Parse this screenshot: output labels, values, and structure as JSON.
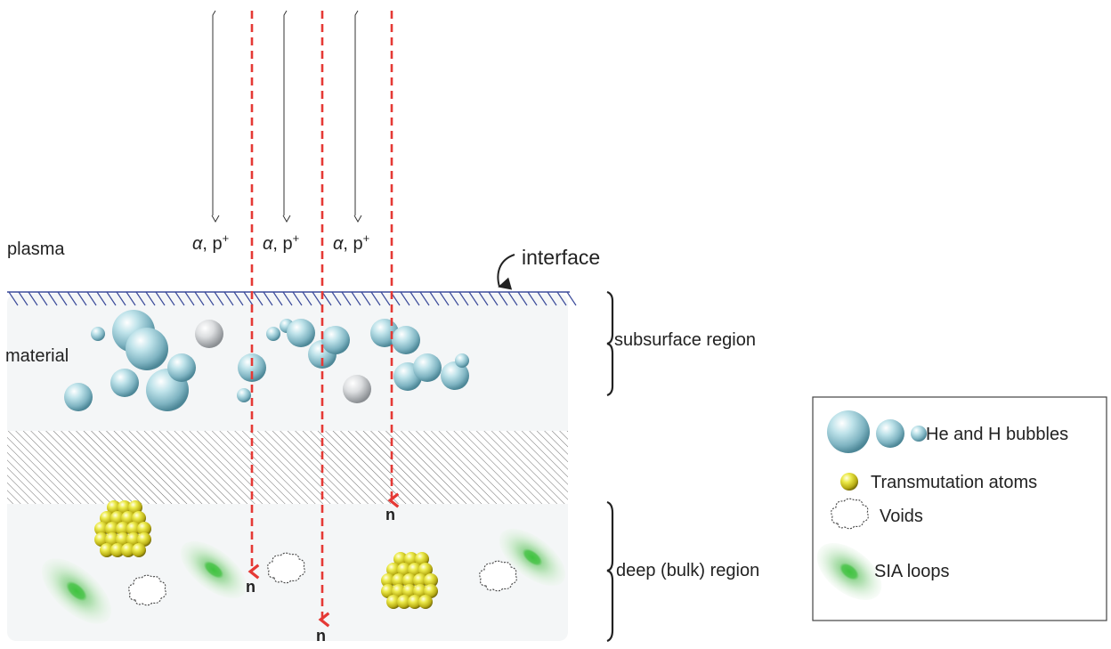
{
  "labels": {
    "plasma": "plasma",
    "material": "material",
    "interface": "interface",
    "subsurface_region": "subsurface region",
    "deep_region": "deep (bulk) region"
  },
  "particles": {
    "alpha_symbol": "α",
    "proton_text": ", p",
    "proton_sup": "+",
    "neutron": "n"
  },
  "legend": {
    "bubbles": "He and H bubbles",
    "transmutation": "Transmutation atoms",
    "voids": "Voids",
    "sia_loops": "SIA loops"
  },
  "colors": {
    "neutron_arrow": "#e53935",
    "interface_hatch": "#3b4b9a",
    "material_fill": "#f4f6f7",
    "bubble_blue": "#8fc4d0",
    "bubble_grey": "#d4d6d8",
    "transmutation_yellow": "#e3df2a",
    "sia_green": "#49c24a"
  }
}
